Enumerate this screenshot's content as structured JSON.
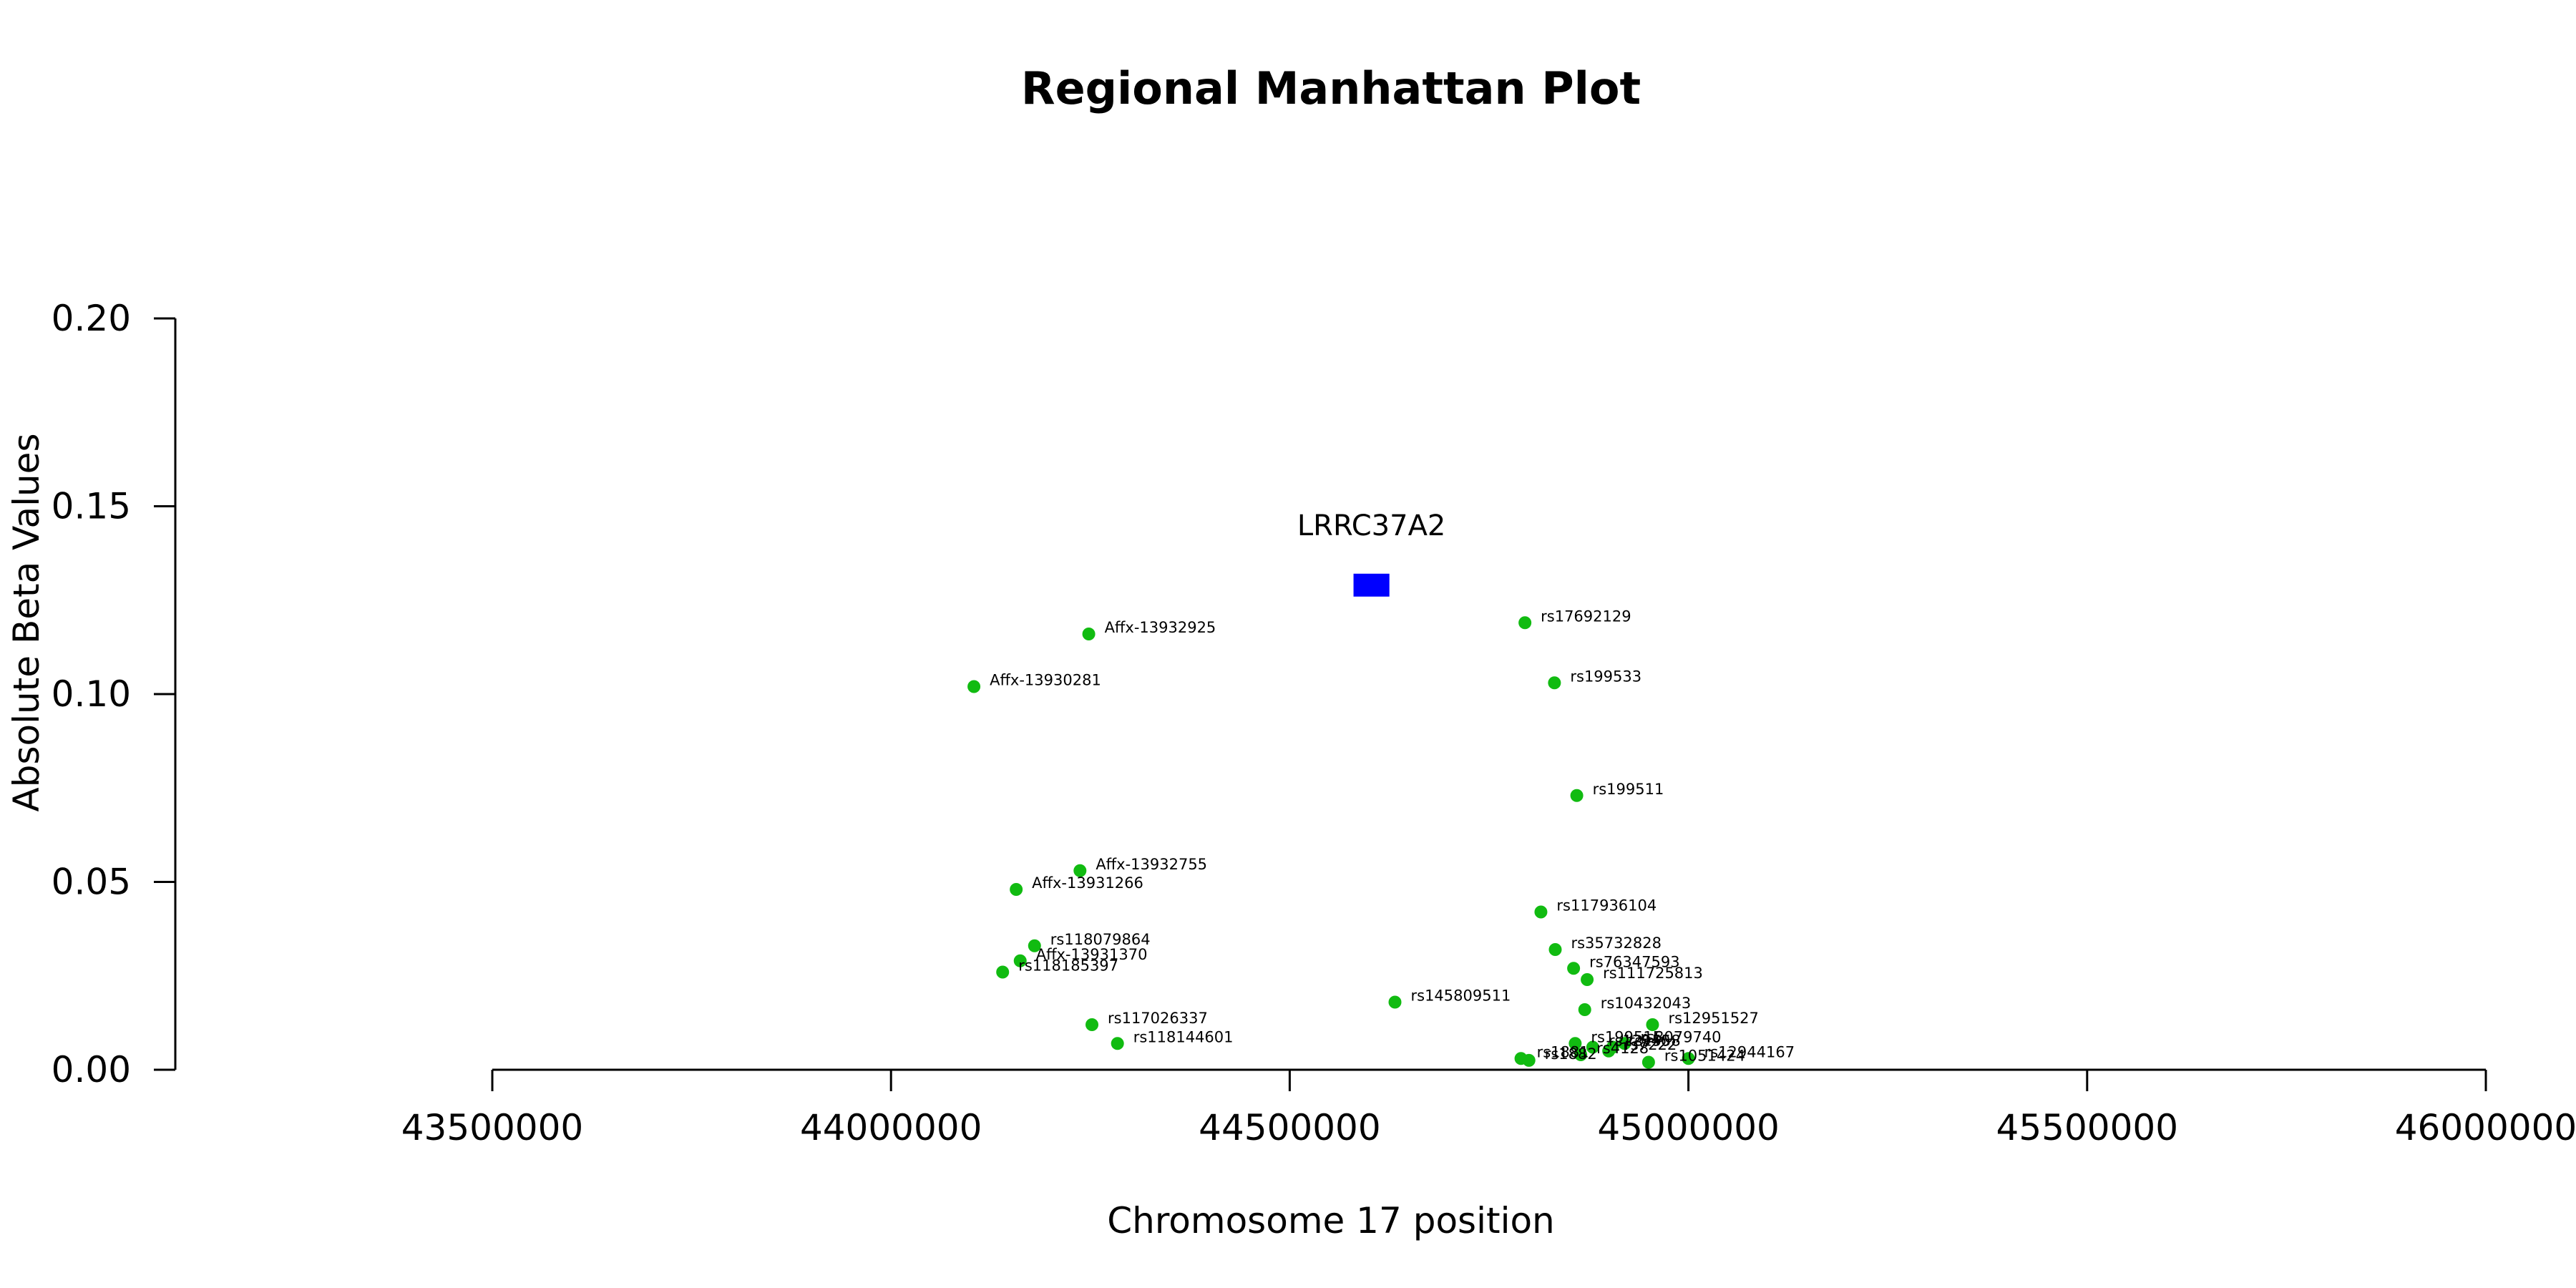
{
  "chart_data": {
    "type": "scatter",
    "title": "Regional Manhattan Plot",
    "xlabel": "Chromosome 17 position",
    "ylabel": "Absolute Beta Values",
    "xlim": [
      43500000,
      46000000
    ],
    "ylim": [
      0,
      0.2
    ],
    "xticks": [
      43500000,
      44000000,
      44500000,
      45000000,
      45500000,
      46000000
    ],
    "yticks": [
      "0.00",
      "0.05",
      "0.10",
      "0.15",
      "0.20"
    ],
    "grid": false,
    "point_color": "#11bb11",
    "gene_color": "#0000ff",
    "gene": {
      "name": "LRRC37A2",
      "start": 44580000,
      "end": 44625000,
      "y": 0.129
    },
    "points": [
      {
        "label": "Affx-13932925",
        "x": 44248000,
        "y": 0.116
      },
      {
        "label": "Affx-13930281",
        "x": 44104000,
        "y": 0.102
      },
      {
        "label": "rs17692129",
        "x": 44795000,
        "y": 0.119
      },
      {
        "label": "rs199533",
        "x": 44832000,
        "y": 0.103
      },
      {
        "label": "rs199511",
        "x": 44860000,
        "y": 0.073
      },
      {
        "label": "Affx-13932755",
        "x": 44237000,
        "y": 0.053
      },
      {
        "label": "Affx-13931266",
        "x": 44157000,
        "y": 0.048
      },
      {
        "label": "rs117936104",
        "x": 44815000,
        "y": 0.042
      },
      {
        "label": "rs118079864",
        "x": 44180000,
        "y": 0.033
      },
      {
        "label": "Affx-13931370",
        "x": 44162000,
        "y": 0.029
      },
      {
        "label": "rs118185397",
        "x": 44140000,
        "y": 0.026
      },
      {
        "label": "rs35732828",
        "x": 44833000,
        "y": 0.032
      },
      {
        "label": "rs76347593",
        "x": 44856000,
        "y": 0.027
      },
      {
        "label": "rs111725813",
        "x": 44873000,
        "y": 0.024
      },
      {
        "label": "rs145809511",
        "x": 44632000,
        "y": 0.018
      },
      {
        "label": "rs10432043",
        "x": 44870000,
        "y": 0.016
      },
      {
        "label": "rs12951527",
        "x": 44955000,
        "y": 0.012
      },
      {
        "label": "rs117026337",
        "x": 44252000,
        "y": 0.012
      },
      {
        "label": "rs118144601",
        "x": 44284000,
        "y": 0.007
      },
      {
        "label": "rs199515",
        "x": 44858000,
        "y": 0.007
      },
      {
        "label": "rs12940",
        "x": 44880000,
        "y": 0.006
      },
      {
        "label": "rs8079740",
        "x": 44920000,
        "y": 0.007
      },
      {
        "label": "rs1558",
        "x": 44905000,
        "y": 0.006
      },
      {
        "label": "rs7222",
        "x": 44900000,
        "y": 0.005
      },
      {
        "label": "rs4128",
        "x": 44865000,
        "y": 0.004
      },
      {
        "label": "rs12944167",
        "x": 45000000,
        "y": 0.003
      },
      {
        "label": "rs1051424",
        "x": 44950000,
        "y": 0.002
      },
      {
        "label": "rs1881",
        "x": 44790000,
        "y": 0.003
      },
      {
        "label": "rs1882",
        "x": 44800000,
        "y": 0.0025
      }
    ]
  }
}
